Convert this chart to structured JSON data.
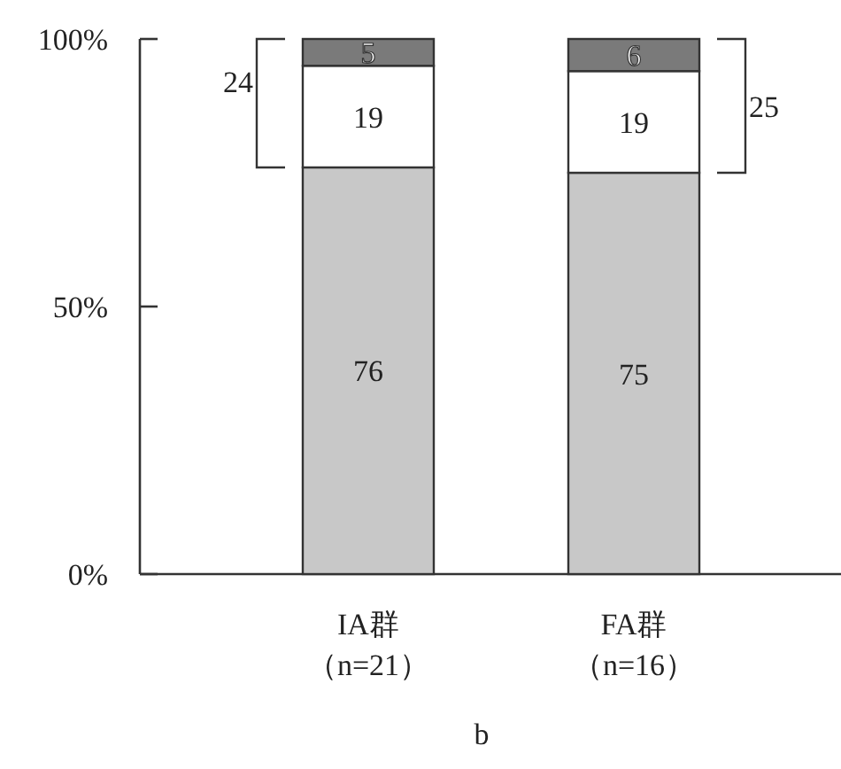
{
  "chart_data": {
    "type": "bar",
    "stacked": true,
    "xlabel": "b",
    "categories": [
      "IA群（n=21）",
      "FA群（n=16）"
    ],
    "series": [
      {
        "color": "#c8c8c8",
        "values": [
          76,
          75
        ]
      },
      {
        "color": "#ffffff",
        "values": [
          19,
          19
        ]
      },
      {
        "color": "#7a7a7a",
        "values": [
          5,
          6
        ]
      }
    ],
    "ylim": [
      0,
      100
    ],
    "yticks": [
      {
        "value": 0,
        "label": "0%"
      },
      {
        "value": 50,
        "label": "50%"
      },
      {
        "value": 100,
        "label": "100%"
      }
    ],
    "data_labels": true,
    "annotations": [
      "24",
      "25"
    ]
  }
}
